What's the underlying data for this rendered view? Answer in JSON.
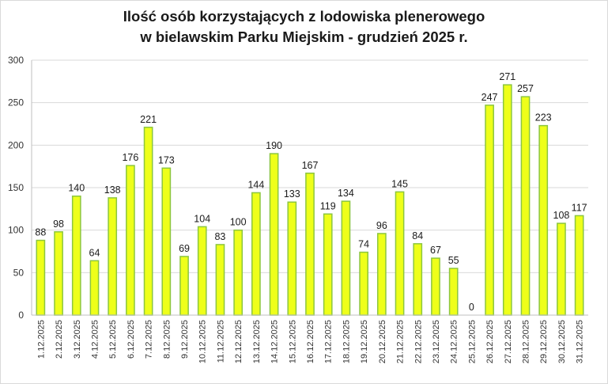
{
  "chart_data": {
    "type": "bar",
    "title_line1": "Ilość osób korzystających z lodowiska plenerowego",
    "title_line2": "w bielawskim Parku Miejskim - grudzień 2025 r.",
    "categories": [
      "1.12.2025",
      "2.12.2025",
      "3.12.2025",
      "4.12.2025",
      "5.12.2025",
      "6.12.2025",
      "7.12.2025",
      "8.12.2025",
      "9.12.2025",
      "10.12.2025",
      "11.12.2025",
      "12.12.2025",
      "13.12.2025",
      "14.12.2025",
      "15.12.2025",
      "16.12.2025",
      "17.12.2025",
      "18.12.2025",
      "19.12.2025",
      "20.12.2025",
      "21.12.2025",
      "22.12.2025",
      "23.12.2025",
      "24.12.2025",
      "25.12.2025",
      "26.12.2025",
      "27.12.2025",
      "28.12.2025",
      "29.12.2025",
      "30.12.2025",
      "31.12.2025"
    ],
    "values": [
      88,
      98,
      140,
      64,
      138,
      176,
      221,
      173,
      69,
      104,
      83,
      100,
      144,
      190,
      133,
      167,
      119,
      134,
      74,
      96,
      145,
      84,
      67,
      55,
      0,
      247,
      271,
      257,
      223,
      108,
      117
    ],
    "ylim": [
      0,
      300
    ],
    "yticks": [
      0,
      50,
      100,
      150,
      200,
      250,
      300
    ],
    "grid": true,
    "legend": "none",
    "colors": {
      "bar_fill": "#eeff1a",
      "bar_stroke": "#8cc63f",
      "grid": "#d9d9d9"
    }
  }
}
